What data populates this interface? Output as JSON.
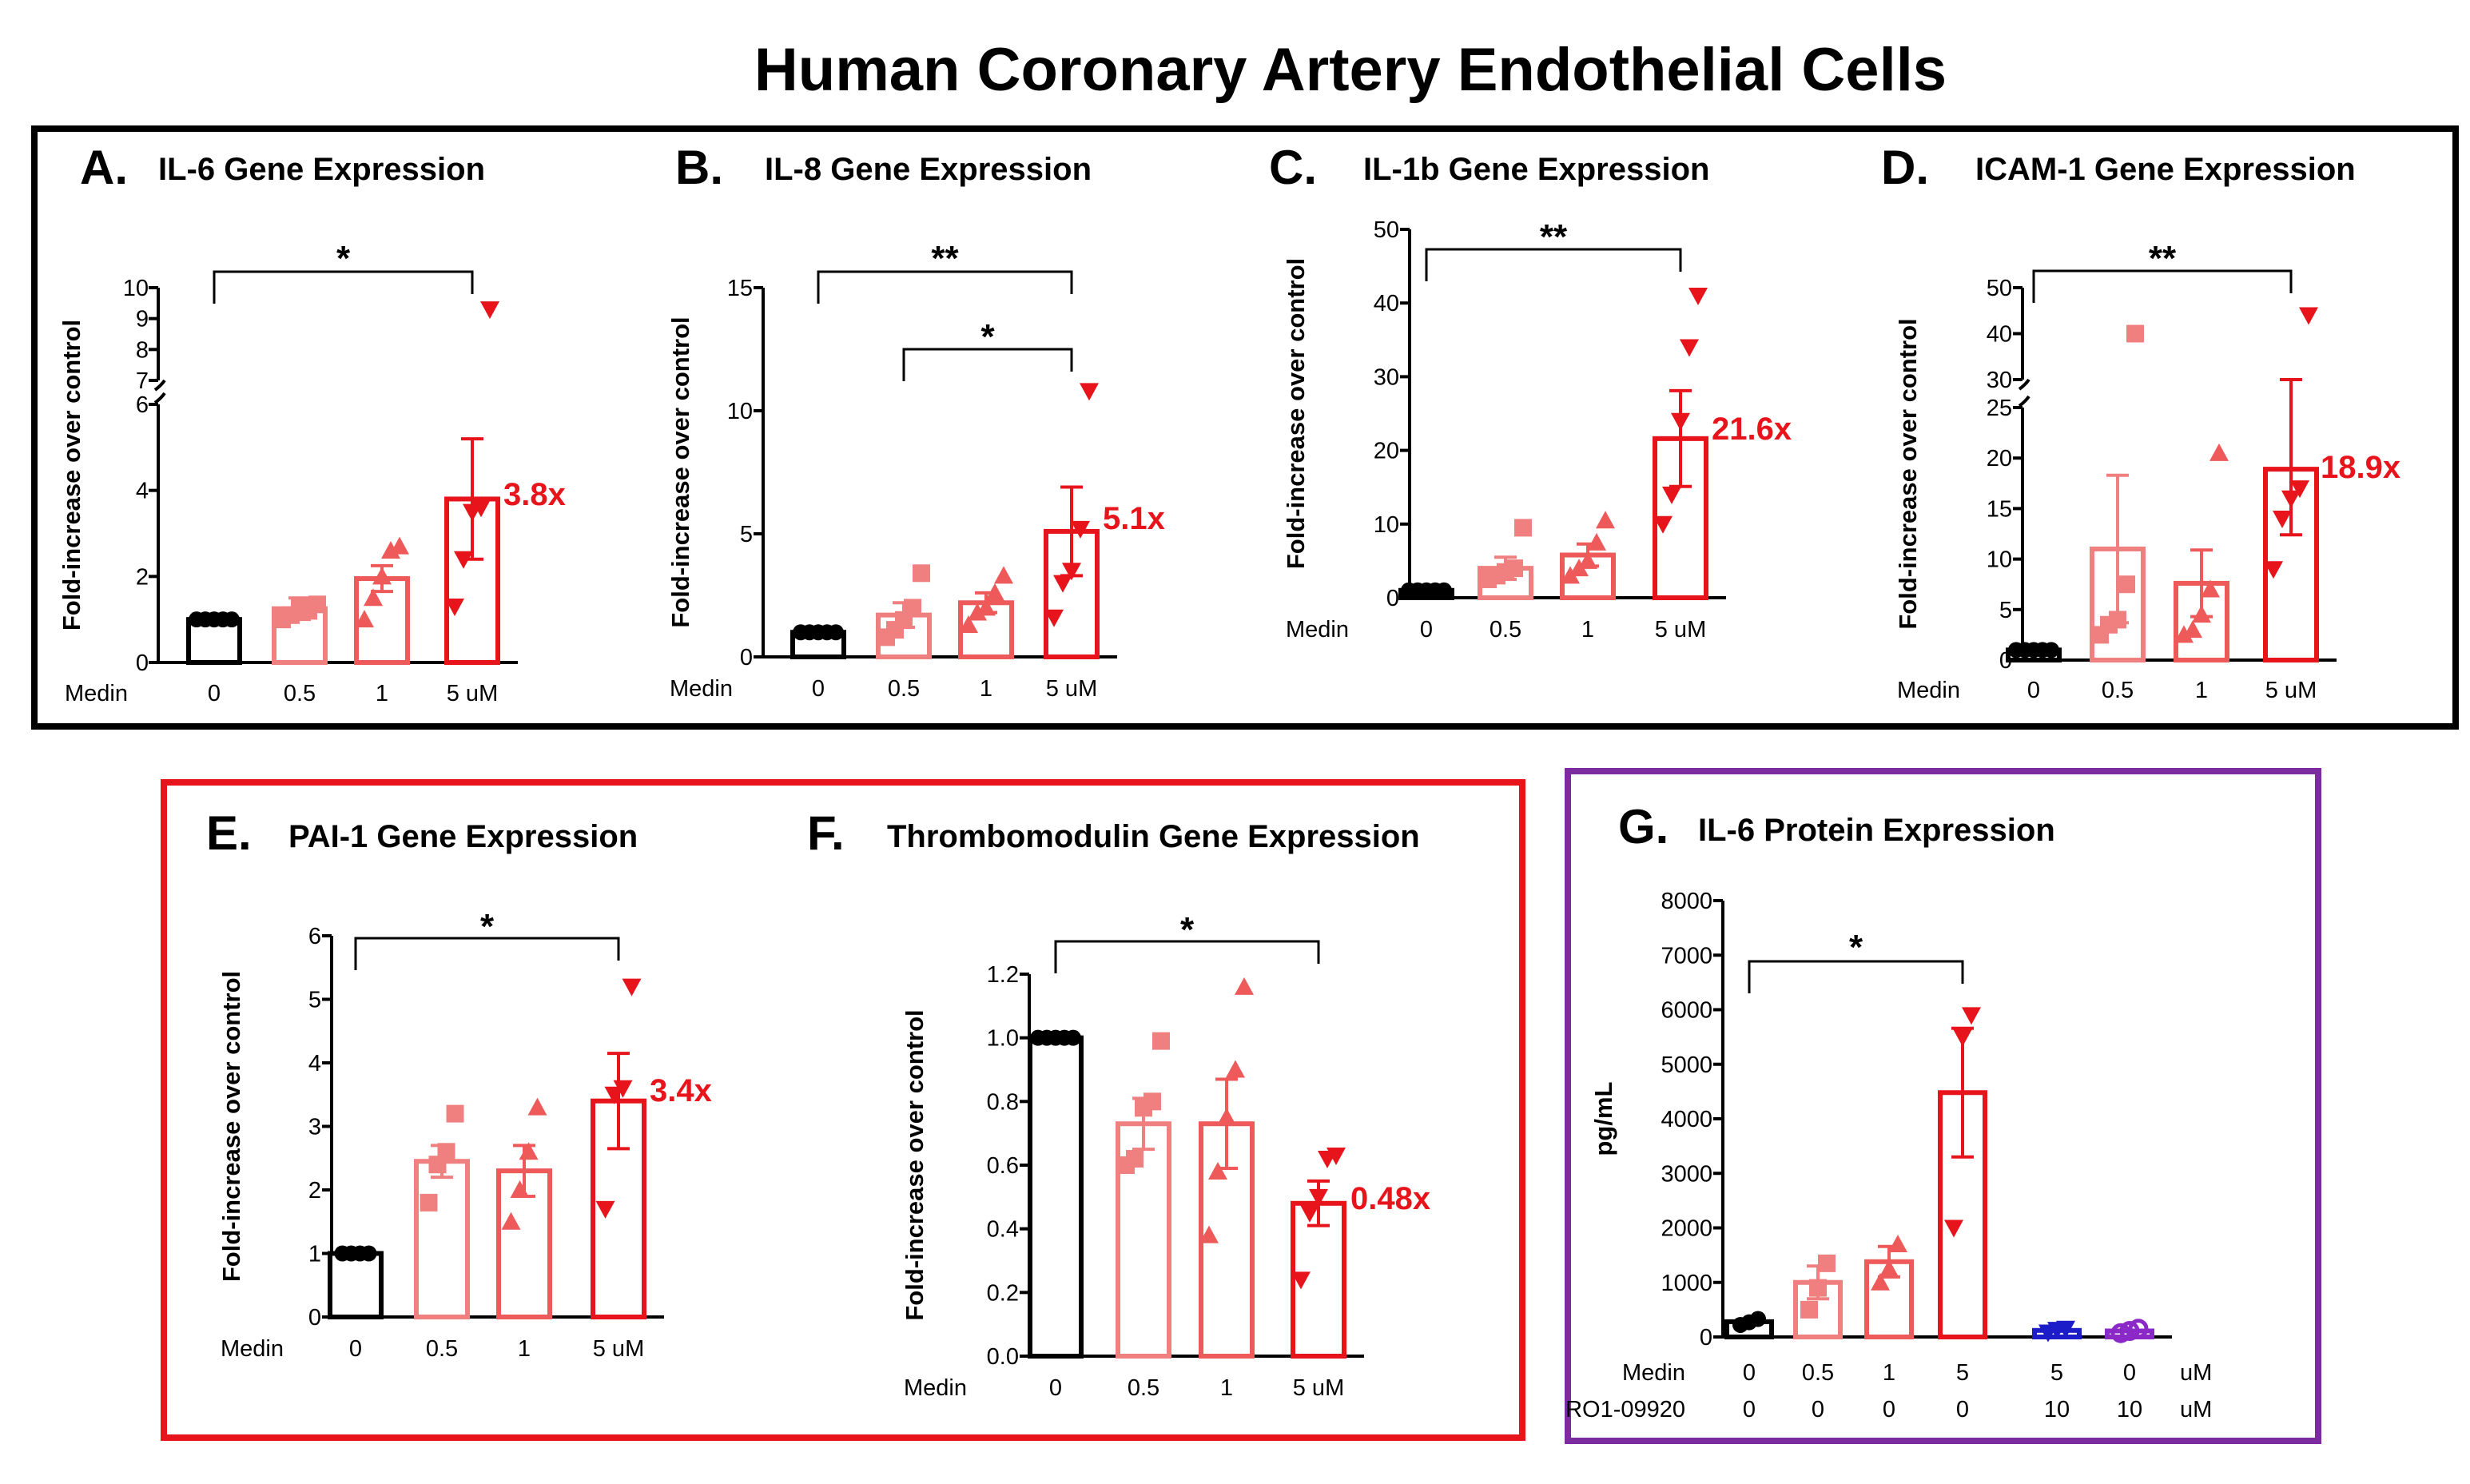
{
  "figure": {
    "title": "Human Coronary Artery Endothelial Cells",
    "colors": {
      "black": "#000000",
      "pink": "#f08080",
      "salmon": "#ee5a5a",
      "red": "#e8141c",
      "blue": "#1c1cc8",
      "purple": "#8a28c8",
      "red_box": "#e8141c",
      "purple_box": "#7b2c9e"
    }
  },
  "chart_data": [
    {
      "type": "bar",
      "letter": "A.",
      "title": "IL-6 Gene Expression",
      "ylabel": "Fold-increase over control",
      "xlabel": "Medin",
      "categories": [
        "0",
        "0.5",
        "1",
        "5 uM"
      ],
      "values": [
        1.0,
        1.25,
        1.95,
        3.8
      ],
      "sem": [
        0,
        0.25,
        0.3,
        1.4
      ],
      "points": [
        [
          1,
          1,
          1,
          1,
          1
        ],
        [
          1.0,
          1.1,
          1.3,
          1.2,
          1.35
        ],
        [
          1.0,
          1.5,
          2.0,
          2.6,
          2.7
        ],
        [
          1.3,
          2.4,
          3.5,
          3.6,
          9.3
        ]
      ],
      "markers": [
        "circle",
        "square",
        "triangle",
        "triangle-down"
      ],
      "ylim": [
        0,
        10
      ],
      "y_break": {
        "lower_max": 6,
        "upper_min": 7
      },
      "yticks": [
        0,
        2,
        4,
        6,
        7,
        8,
        9,
        10
      ],
      "significance": [
        {
          "from": 0,
          "to": 3,
          "label": "*"
        }
      ],
      "fold_label": "3.8x"
    },
    {
      "type": "bar",
      "letter": "B.",
      "title": "IL-8 Gene Expression",
      "ylabel": "Fold-increase over control",
      "xlabel": "Medin",
      "categories": [
        "0",
        "0.5",
        "1",
        "5 uM"
      ],
      "values": [
        1.0,
        1.7,
        2.2,
        5.1
      ],
      "sem": [
        0,
        0.5,
        0.4,
        1.8
      ],
      "points": [
        [
          1,
          1,
          1,
          1,
          1
        ],
        [
          0.8,
          1.1,
          1.5,
          2.0,
          3.4
        ],
        [
          1.3,
          1.8,
          2.0,
          2.6,
          3.3
        ],
        [
          1.6,
          3.0,
          3.5,
          5.2,
          10.8
        ]
      ],
      "markers": [
        "circle",
        "square",
        "triangle",
        "triangle-down"
      ],
      "ylim": [
        0,
        15
      ],
      "yticks": [
        0,
        5,
        10,
        15
      ],
      "significance": [
        {
          "from": 0,
          "to": 3,
          "label": "**"
        },
        {
          "from": 1,
          "to": 3,
          "label": "*"
        }
      ],
      "fold_label": "5.1x"
    },
    {
      "type": "bar",
      "letter": "C.",
      "title": "IL-1b Gene Expression",
      "ylabel": "Fold-increase over control",
      "xlabel": "Medin",
      "categories": [
        "0",
        "0.5",
        "1",
        "5 uM"
      ],
      "values": [
        1.0,
        4.0,
        5.8,
        21.6
      ],
      "sem": [
        0,
        1.5,
        1.5,
        6.5
      ],
      "points": [
        [
          1,
          1,
          1,
          1,
          1
        ],
        [
          2.5,
          3.0,
          3.5,
          4.0,
          9.5
        ],
        [
          3.0,
          4.0,
          5.0,
          7.5,
          10.5
        ],
        [
          10.0,
          14.0,
          24.0,
          34.0,
          41.0
        ]
      ],
      "markers": [
        "circle",
        "square",
        "triangle",
        "triangle-down"
      ],
      "ylim": [
        0,
        50
      ],
      "yticks": [
        0,
        10,
        20,
        30,
        40,
        50
      ],
      "significance": [
        {
          "from": 0,
          "to": 3,
          "label": "**"
        }
      ],
      "fold_label": "21.6x"
    },
    {
      "type": "bar",
      "letter": "D.",
      "title": "ICAM-1 Gene Expression",
      "ylabel": "Fold-increase over control",
      "xlabel": "Medin",
      "categories": [
        "0",
        "0.5",
        "1",
        "5 uM"
      ],
      "values": [
        1.0,
        11.0,
        7.6,
        18.9
      ],
      "sem": [
        0,
        7.3,
        3.3,
        6.5
      ],
      "points": [
        [
          1,
          1,
          1,
          1,
          1
        ],
        [
          2.5,
          3.5,
          4.0,
          7.5,
          40.0
        ],
        [
          2.5,
          3.0,
          4.5,
          7.0,
          20.5
        ],
        [
          9.0,
          14.0,
          16.0,
          17.0,
          44.0
        ]
      ],
      "markers": [
        "circle",
        "square",
        "triangle",
        "triangle-down"
      ],
      "ylim": [
        0,
        50
      ],
      "y_break": {
        "lower_max": 25,
        "upper_min": 30
      },
      "yticks": [
        0,
        5,
        10,
        15,
        20,
        25,
        30,
        40,
        50
      ],
      "significance": [
        {
          "from": 0,
          "to": 3,
          "label": "**"
        }
      ],
      "fold_label": "18.9x"
    },
    {
      "type": "bar",
      "letter": "E.",
      "title": "PAI-1 Gene Expression",
      "ylabel": "Fold-increase over control",
      "xlabel": "Medin",
      "categories": [
        "0",
        "0.5",
        "1",
        "5 uM"
      ],
      "values": [
        1.0,
        2.45,
        2.3,
        3.4
      ],
      "sem": [
        0,
        0.25,
        0.4,
        0.75
      ],
      "points": [
        [
          1,
          1,
          1,
          1
        ],
        [
          1.8,
          2.4,
          2.6,
          3.2
        ],
        [
          1.5,
          2.0,
          2.6,
          3.3
        ],
        [
          1.7,
          3.5,
          3.6,
          5.2
        ]
      ],
      "markers": [
        "circle",
        "square",
        "triangle",
        "triangle-down"
      ],
      "ylim": [
        0,
        6
      ],
      "yticks": [
        0,
        1,
        2,
        3,
        4,
        5,
        6
      ],
      "significance": [
        {
          "from": 0,
          "to": 3,
          "label": "*"
        }
      ],
      "fold_label": "3.4x"
    },
    {
      "type": "bar",
      "letter": "F.",
      "title": "Thrombomodulin Gene Expression",
      "ylabel": "Fold-increase over control",
      "xlabel": "Medin",
      "categories": [
        "0",
        "0.5",
        "1",
        "5 uM"
      ],
      "values": [
        1.0,
        0.73,
        0.73,
        0.48
      ],
      "sem": [
        0,
        0.08,
        0.14,
        0.07
      ],
      "points": [
        [
          1,
          1,
          1,
          1,
          1
        ],
        [
          0.6,
          0.62,
          0.78,
          0.8,
          0.99
        ],
        [
          0.38,
          0.58,
          0.75,
          0.9,
          1.16
        ],
        [
          0.24,
          0.45,
          0.5,
          0.62,
          0.63
        ]
      ],
      "markers": [
        "circle",
        "square",
        "triangle",
        "triangle-down"
      ],
      "ylim": [
        0,
        1.2
      ],
      "yticks": [
        0.0,
        0.2,
        0.4,
        0.6,
        0.8,
        1.0,
        1.2
      ],
      "ytick_labels": [
        "0.0",
        "0.2",
        "0.4",
        "0.6",
        "0.8",
        "1.0",
        "1.2"
      ],
      "significance": [
        {
          "from": 0,
          "to": 3,
          "label": "*"
        }
      ],
      "fold_label": "0.48x"
    },
    {
      "type": "bar",
      "letter": "G.",
      "title": "IL-6 Protein Expression",
      "ylabel": "pg/mL",
      "xlabel": "Medin",
      "xlabel2": "RO1-09920",
      "categories": [
        "0",
        "0.5",
        "1",
        "5",
        "5",
        "0"
      ],
      "categories2": [
        "0",
        "0",
        "0",
        "0",
        "10",
        "10"
      ],
      "unit": "uM",
      "unit2": "uM",
      "values": [
        280,
        1000,
        1380,
        4480,
        120,
        110
      ],
      "sem": [
        40,
        300,
        280,
        1180,
        0,
        0
      ],
      "points": [
        [
          220,
          270,
          330
        ],
        [
          500,
          900,
          1350
        ],
        [
          1000,
          1250,
          1700
        ],
        [
          2000,
          5500,
          5900
        ],
        [
          80,
          130,
          150
        ],
        [
          70,
          110,
          150
        ]
      ],
      "markers": [
        "circle",
        "square",
        "triangle",
        "triangle-down",
        "triangle-down",
        "circle-open"
      ],
      "ylim": [
        0,
        8000
      ],
      "yticks": [
        0,
        1000,
        2000,
        3000,
        4000,
        5000,
        6000,
        7000,
        8000
      ],
      "significance": [
        {
          "from": 0,
          "to": 3,
          "label": "*"
        }
      ]
    }
  ]
}
